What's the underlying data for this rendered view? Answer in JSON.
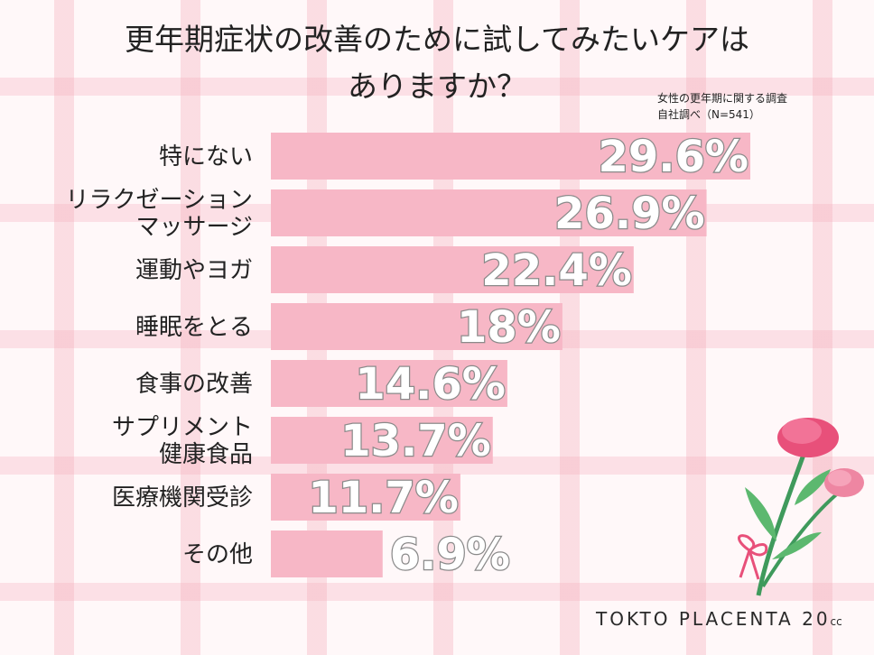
{
  "title_line1": "更年期症状の改善のために試してみたいケアは",
  "title_line2": "ありますか？",
  "source_line1": "女性の更年期に関する調査",
  "source_line2": "自社調べ（N=541）",
  "logo_main": "TOKTO PLACENTA 20",
  "logo_sub": "cc",
  "colors": {
    "bar": "#f7b7c6",
    "value_fill": "#ffffff",
    "value_stroke": "#8a8a8a",
    "label": "#222222"
  },
  "chart_data": {
    "type": "bar",
    "orientation": "horizontal",
    "categories": [
      [
        "特にない"
      ],
      [
        "リラクゼーション",
        "マッサージ"
      ],
      [
        "運動やヨガ"
      ],
      [
        "睡眠をとる"
      ],
      [
        "食事の改善"
      ],
      [
        "サプリメント",
        "健康食品"
      ],
      [
        "医療機関受診"
      ],
      [
        "その他"
      ]
    ],
    "values": [
      29.6,
      26.9,
      22.4,
      18,
      14.6,
      13.7,
      11.7,
      6.9
    ],
    "value_labels": [
      "29.6%",
      "26.9%",
      "22.4%",
      "18%",
      "14.6%",
      "13.7%",
      "11.7%",
      "6.9%"
    ],
    "unit": "%"
  }
}
